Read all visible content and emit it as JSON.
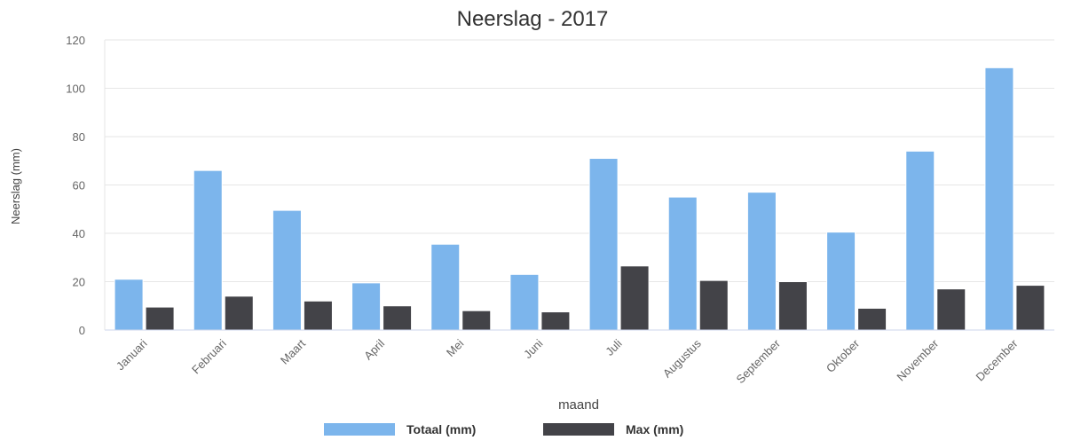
{
  "chart_data": {
    "type": "bar",
    "title": "Neerslag - 2017",
    "xlabel": "maand",
    "ylabel": "Neerslag (mm)",
    "ylim": [
      0,
      120
    ],
    "yticks": [
      0,
      20,
      40,
      60,
      80,
      100,
      120
    ],
    "grid": true,
    "legend_position": "bottom",
    "categories": [
      "Januari",
      "Februari",
      "Maart",
      "April",
      "Mei",
      "Juni",
      "Juli",
      "Augustus",
      "September",
      "Oktober",
      "November",
      "December"
    ],
    "series": [
      {
        "name": "Totaal (mm)",
        "color": "#7cb5ec",
        "values": [
          21,
          66,
          49.5,
          19.5,
          35.5,
          23,
          71,
          55,
          57,
          40.5,
          74,
          108.5
        ]
      },
      {
        "name": "Max (mm)",
        "color": "#434348",
        "values": [
          9.5,
          14,
          12,
          10,
          8,
          7.5,
          26.5,
          20.5,
          20,
          9,
          17,
          18.5
        ]
      }
    ]
  }
}
